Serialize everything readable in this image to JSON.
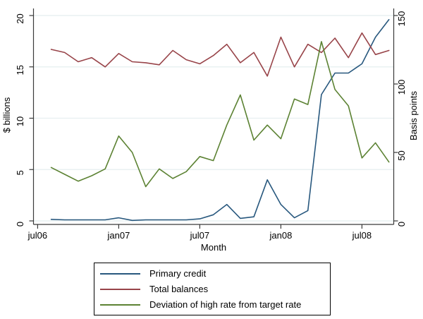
{
  "chart_data": {
    "type": "line",
    "x": [
      "aug06",
      "sep06",
      "oct06",
      "nov06",
      "dec06",
      "jan07",
      "feb07",
      "mar07",
      "apr07",
      "may07",
      "jun07",
      "jul07",
      "aug07",
      "sep07",
      "oct07",
      "nov07",
      "dec07",
      "jan08",
      "feb08",
      "mar08",
      "apr08",
      "may08",
      "jun08",
      "jul08",
      "aug08",
      "sep08"
    ],
    "x_tick_labels": [
      "jul06",
      "jan07",
      "jul07",
      "jan08",
      "jul08"
    ],
    "xlabel": "Month",
    "left_axis": {
      "label": "$ billions",
      "ticks": [
        0,
        5,
        10,
        15,
        20
      ],
      "range": [
        0,
        20
      ]
    },
    "right_axis": {
      "label": "Basis points",
      "ticks": [
        0,
        50,
        100,
        150
      ],
      "range": [
        0,
        150
      ]
    },
    "grid": true,
    "legend_position": "bottom",
    "series": [
      {
        "name": "Primary credit",
        "axis": "left",
        "color": "#28587e",
        "values": [
          0.15,
          0.1,
          0.1,
          0.1,
          0.1,
          0.3,
          0.05,
          0.1,
          0.1,
          0.1,
          0.1,
          0.2,
          0.6,
          1.6,
          0.25,
          0.4,
          4.0,
          1.6,
          0.3,
          1.0,
          12.3,
          14.4,
          14.4,
          15.3,
          17.9,
          19.6
        ]
      },
      {
        "name": "Total balances",
        "axis": "left",
        "color": "#984449",
        "values": [
          16.7,
          16.4,
          15.5,
          15.9,
          15.0,
          16.3,
          15.5,
          15.4,
          15.2,
          16.6,
          15.7,
          15.3,
          16.1,
          17.2,
          15.4,
          16.4,
          14.1,
          17.9,
          15.0,
          17.2,
          16.4,
          17.8,
          15.9,
          18.3,
          16.2,
          16.6
        ]
      },
      {
        "name": "Deviation of high rate from target rate",
        "axis": "right",
        "color": "#5c8233",
        "values": [
          39,
          34,
          29,
          33,
          38,
          62,
          50,
          25,
          38,
          31,
          36,
          47,
          44,
          70,
          92,
          59,
          70,
          60,
          89,
          85,
          131,
          96,
          84,
          46,
          57,
          43
        ]
      }
    ],
    "colors": {
      "gridline": "#e9f1f2",
      "axis_line": "#3a3a3a",
      "text": "#000000",
      "background": "#ffffff"
    }
  }
}
